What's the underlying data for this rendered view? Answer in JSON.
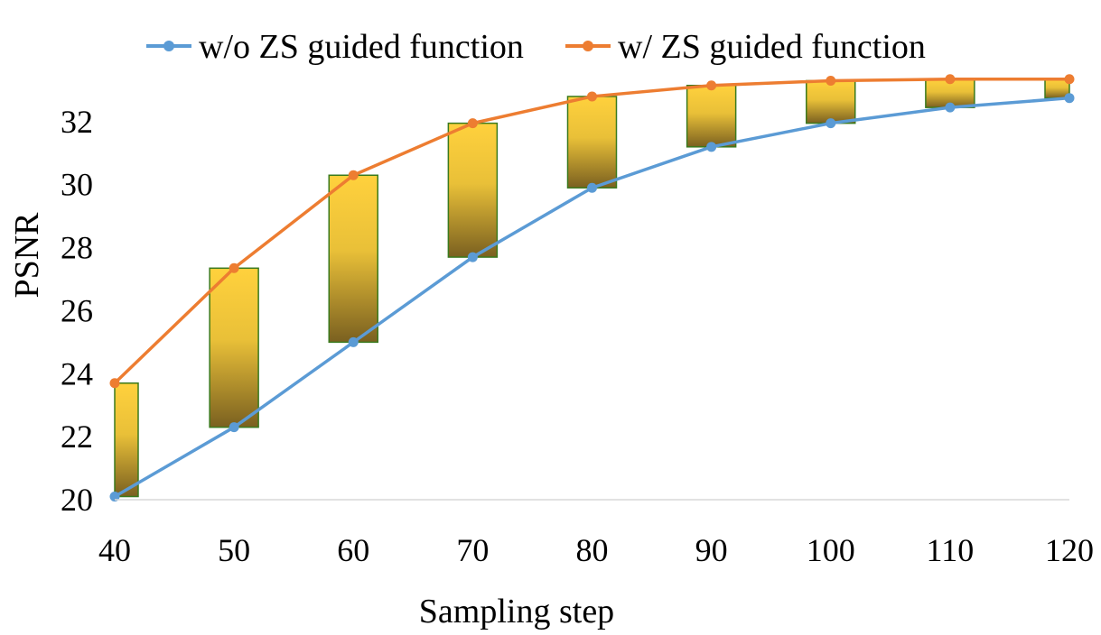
{
  "chart_data": {
    "type": "line",
    "title": "",
    "xlabel": "Sampling step",
    "ylabel": "PSNR",
    "x": [
      40,
      50,
      60,
      70,
      80,
      90,
      100,
      110,
      120
    ],
    "xlim": [
      40,
      120
    ],
    "ylim": [
      20,
      33.6
    ],
    "xticks": [
      "40",
      "50",
      "60",
      "70",
      "80",
      "90",
      "100",
      "110",
      "120"
    ],
    "yticks": [
      "20",
      "22",
      "24",
      "26",
      "28",
      "30",
      "32"
    ],
    "ytick_values": [
      20,
      22,
      24,
      26,
      28,
      30,
      32
    ],
    "grid": false,
    "legend_position": "top",
    "series": [
      {
        "name": "w/o ZS guided function",
        "color": "#5B9BD5",
        "values": [
          20.1,
          22.3,
          25.0,
          27.7,
          29.9,
          31.2,
          31.95,
          32.45,
          32.75
        ]
      },
      {
        "name": "w/ ZS guided function",
        "color": "#ED7D31",
        "values": [
          23.7,
          27.35,
          30.3,
          31.95,
          32.8,
          33.15,
          33.3,
          33.35,
          33.35
        ]
      }
    ],
    "gain_bars": {
      "description": "difference between series",
      "fill_top": "#FFD13D",
      "fill_bottom": "#7A6020",
      "border": "#3A7A1E"
    }
  }
}
